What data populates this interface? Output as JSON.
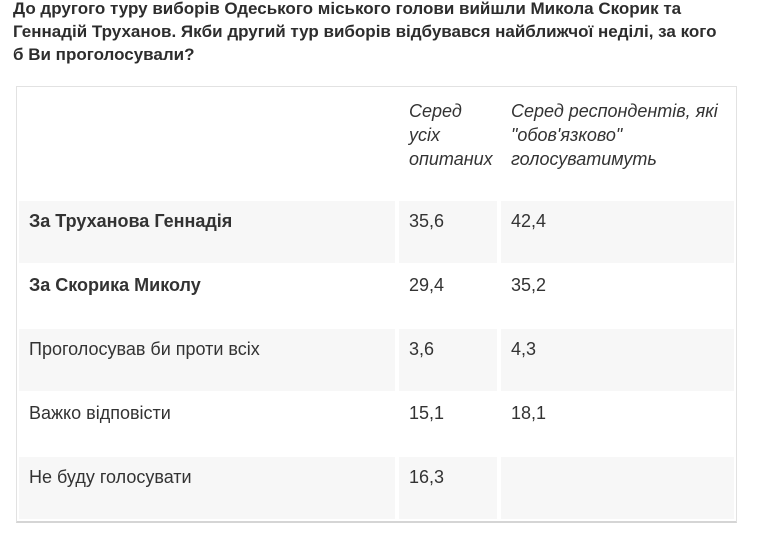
{
  "question": {
    "title": "До другого туру виборів Одеського міського голови вийшли Микола Скорик та Геннадій Труханов. Якби другий тур виборів відбувався найближчої неділі, за кого б Ви проголосували?"
  },
  "table": {
    "columns": [
      {
        "label": ""
      },
      {
        "label": "Серед усіх опитаних"
      },
      {
        "label": "Серед респондентів, які \"обов'язково\" голосуватимуть"
      }
    ],
    "rows": [
      {
        "label": "За Труханова Геннадія",
        "all_respondents": "35,6",
        "will_vote": "42,4"
      },
      {
        "label": "За Скорика Миколу",
        "all_respondents": "29,4",
        "will_vote": "35,2"
      },
      {
        "label": "Проголосував би проти всіх",
        "all_respondents": "3,6",
        "will_vote": "4,3"
      },
      {
        "label": "Важко відповісти",
        "all_respondents": "15,1",
        "will_vote": "18,1"
      },
      {
        "label": "Не буду голосувати",
        "all_respondents": "16,3",
        "will_vote": ""
      }
    ]
  },
  "colors": {
    "stripe_row_background": "#f7f7f7",
    "table_border": "#e2e2e2",
    "table_bottom_border": "#d5d5d5",
    "text": "#333333",
    "title_text": "#2d2d2d"
  }
}
